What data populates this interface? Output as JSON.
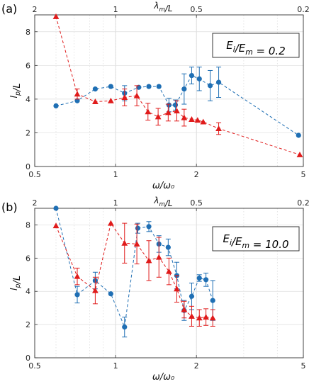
{
  "chart_data": [
    {
      "type": "line",
      "panel_label": "(a)",
      "annotation": "E_i/E_m = 0.2",
      "xlabel": "ω/ω₀",
      "ylabel": "l_p/L",
      "top_xlabel": "λ_m/L",
      "xscale": "log",
      "xlim": [
        0.5,
        5
      ],
      "ylim": [
        0,
        9
      ],
      "x_ticks": [
        0.5,
        1,
        2,
        5
      ],
      "y_ticks": [
        0,
        2,
        4,
        6,
        8
      ],
      "top_ticks": [
        {
          "label": "2",
          "x": 0.5
        },
        {
          "label": "1",
          "x": 1
        },
        {
          "label": "0.5",
          "x": 2
        },
        {
          "label": "0.2",
          "x": 5
        }
      ],
      "grid": true,
      "legend": "none",
      "series": [
        {
          "color": "#1f6fb4",
          "marker": "circle",
          "x": [
            0.6,
            0.72,
            0.84,
            0.96,
            1.08,
            1.22,
            1.33,
            1.45,
            1.58,
            1.67,
            1.8,
            1.92,
            2.05,
            2.25,
            2.42,
            4.8
          ],
          "y": [
            3.6,
            3.9,
            4.6,
            4.75,
            4.35,
            4.7,
            4.75,
            4.75,
            3.65,
            3.65,
            4.6,
            5.4,
            5.2,
            4.8,
            5.0,
            1.85
          ],
          "err": [
            0,
            0,
            0,
            0,
            0.45,
            0,
            0,
            0,
            0.4,
            0.3,
            0.9,
            0.5,
            0.7,
            0.9,
            0.9,
            0
          ]
        },
        {
          "color": "#e01b1b",
          "marker": "triangle",
          "x": [
            0.6,
            0.72,
            0.84,
            0.96,
            1.08,
            1.2,
            1.32,
            1.44,
            1.57,
            1.69,
            1.8,
            1.92,
            2.02,
            2.12,
            2.42,
            4.85
          ],
          "y": [
            8.9,
            4.3,
            3.85,
            3.9,
            4.1,
            4.2,
            3.25,
            2.95,
            3.2,
            3.3,
            2.9,
            2.8,
            2.75,
            2.65,
            2.25,
            0.7
          ],
          "err": [
            0,
            0.3,
            0,
            0,
            0.5,
            0.6,
            0.5,
            0.5,
            0.5,
            0.6,
            0.5,
            0,
            0,
            0,
            0.35,
            0
          ]
        }
      ]
    },
    {
      "type": "line",
      "panel_label": "(b)",
      "annotation": "E_i/E_m = 10.0",
      "xlabel": "ω/ω₀",
      "ylabel": "l_p/L",
      "top_xlabel": "λ_m/L",
      "xscale": "log",
      "xlim": [
        0.5,
        5
      ],
      "ylim": [
        0,
        9
      ],
      "x_ticks": [
        0.5,
        1,
        2,
        5
      ],
      "y_ticks": [
        0,
        2,
        4,
        6,
        8
      ],
      "top_ticks": [
        {
          "label": "2",
          "x": 0.5
        },
        {
          "label": "1",
          "x": 1
        },
        {
          "label": "0.5",
          "x": 2
        },
        {
          "label": "0.2",
          "x": 5
        }
      ],
      "grid": true,
      "legend": "none",
      "series": [
        {
          "color": "#1f6fb4",
          "marker": "circle",
          "x": [
            0.6,
            0.72,
            0.84,
            0.96,
            1.08,
            1.21,
            1.33,
            1.45,
            1.57,
            1.69,
            1.8,
            1.92,
            2.05,
            2.17,
            2.3
          ],
          "y": [
            9.0,
            3.8,
            4.65,
            3.85,
            1.85,
            7.8,
            7.9,
            6.85,
            6.65,
            4.95,
            2.85,
            3.7,
            4.8,
            4.7,
            3.45
          ],
          "err": [
            0,
            0.5,
            0.5,
            0,
            0.6,
            0.3,
            0.3,
            0.5,
            0.5,
            0.8,
            0.6,
            0.8,
            0.2,
            0.4,
            1.2
          ]
        },
        {
          "color": "#e01b1b",
          "marker": "triangle",
          "x": [
            0.6,
            0.72,
            0.84,
            0.96,
            1.08,
            1.2,
            1.33,
            1.45,
            1.58,
            1.69,
            1.8,
            1.92,
            2.05,
            2.17,
            2.3
          ],
          "y": [
            7.95,
            4.9,
            4.05,
            8.1,
            6.9,
            6.85,
            5.85,
            6.05,
            5.2,
            4.15,
            2.9,
            2.5,
            2.4,
            2.45,
            2.4
          ],
          "err": [
            0,
            0.5,
            0.8,
            0,
            1.2,
            1.2,
            1.2,
            1.2,
            0.8,
            0.8,
            0.5,
            0.6,
            0.5,
            0.5,
            0.5
          ]
        }
      ]
    }
  ]
}
